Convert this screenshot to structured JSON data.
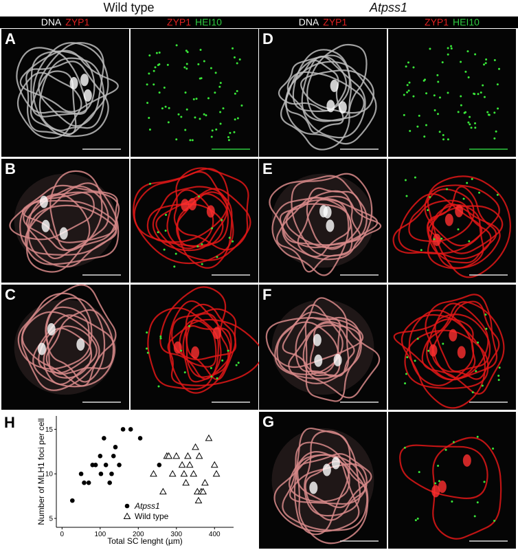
{
  "header": {
    "left": "Wild type",
    "right": "Atpss1"
  },
  "channel_labels": [
    [
      "DNA",
      "ZYP1"
    ],
    [
      "ZYP1",
      "HEI10"
    ],
    [
      "DNA",
      "ZYP1"
    ],
    [
      "ZYP1",
      "HEI10"
    ]
  ],
  "panels": [
    "A",
    "B",
    "C",
    "D",
    "E",
    "F",
    "G",
    "H"
  ],
  "chart_data": {
    "type": "scatter",
    "xlabel": "Total SC lenght (µm)",
    "ylabel": "Number of MLH1 foci per cell",
    "xlim": [
      -15,
      450
    ],
    "ylim": [
      4,
      16.5
    ],
    "xticks": [
      0,
      100,
      200,
      300,
      400
    ],
    "yticks": [
      5,
      10,
      15
    ],
    "series": [
      {
        "name": "Atpss1",
        "color": "#000000",
        "marker": "circle",
        "x": [
          27,
          50,
          58,
          70,
          80,
          88,
          100,
          102,
          110,
          115,
          125,
          130,
          135,
          140,
          150,
          160,
          180,
          205,
          255
        ],
        "values": [
          7,
          10,
          9,
          9,
          11,
          11,
          12,
          10,
          14,
          11,
          9,
          10,
          12,
          13,
          11,
          15,
          15,
          14,
          11
        ]
      },
      {
        "name": "Wild type",
        "color": "#000000",
        "marker": "triangle",
        "x": [
          240,
          265,
          275,
          280,
          290,
          300,
          315,
          320,
          325,
          330,
          335,
          345,
          350,
          355,
          358,
          360,
          365,
          370,
          375,
          385,
          400,
          405
        ],
        "values": [
          10,
          8,
          12,
          12,
          10,
          12,
          11,
          10,
          9,
          12,
          11,
          10,
          13,
          8,
          7,
          12,
          8,
          8,
          9,
          14,
          11,
          10
        ]
      }
    ]
  }
}
